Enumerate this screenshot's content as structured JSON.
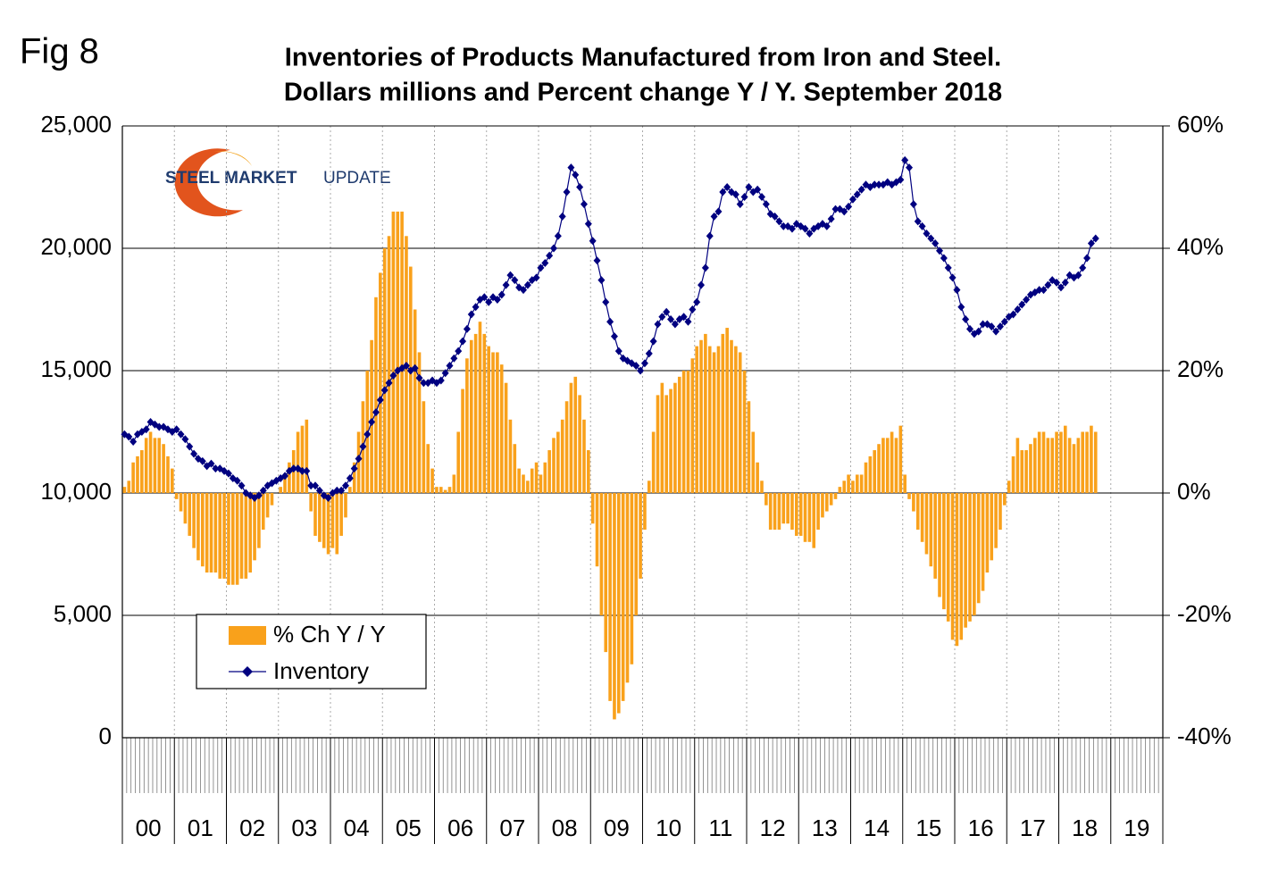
{
  "figure_label": "Fig 8",
  "logo": [
    "STEEL MARKET",
    "UPDATE"
  ],
  "chart_data": {
    "type": "bar_line",
    "title": "Inventories of Products Manufactured from Iron and Steel.",
    "subtitle": "Dollars millions and Percent change Y / Y. September 2018",
    "x_labels": [
      "00",
      "01",
      "02",
      "03",
      "04",
      "05",
      "06",
      "07",
      "08",
      "09",
      "10",
      "11",
      "12",
      "13",
      "14",
      "15",
      "16",
      "17",
      "18",
      "19"
    ],
    "ylim": [
      0,
      25000
    ],
    "yticks": [
      0,
      {
        "value": 5000,
        "label": "5,000"
      },
      {
        "value": 10000,
        "label": "10,000"
      },
      {
        "value": 15000,
        "label": "15,000"
      },
      {
        "value": 20000,
        "label": "20,000"
      },
      {
        "value": 25000,
        "label": "25,000"
      }
    ],
    "y2lim": [
      -40,
      60
    ],
    "y2ticks": [
      {
        "value": -40,
        "label": "-40%"
      },
      {
        "value": -20,
        "label": "-20%"
      },
      {
        "value": 0,
        "label": "0%"
      },
      {
        "value": 20,
        "label": "20%"
      },
      {
        "value": 40,
        "label": "40%"
      },
      {
        "value": 60,
        "label": "60%"
      }
    ],
    "grid": true,
    "series": [
      {
        "name": "% Ch Y / Y",
        "type": "bar",
        "axis": "y2",
        "color": "#f9a11b",
        "values": [
          1,
          2,
          5,
          6,
          7,
          9,
          10,
          9,
          9,
          8,
          6,
          4,
          -1,
          -3,
          -5,
          -7,
          -9,
          -11,
          -12,
          -13,
          -13,
          -13,
          -14,
          -14,
          -15,
          -15,
          -15,
          -14,
          -14,
          -13,
          -11,
          -9,
          -6,
          -4,
          -2,
          0,
          1,
          3,
          5,
          7,
          10,
          11,
          12,
          -3,
          -7,
          -8,
          -9,
          -10,
          -9,
          -10,
          -7,
          -4,
          1,
          5,
          10,
          15,
          20,
          25,
          32,
          36,
          40,
          42,
          46,
          46,
          46,
          42,
          37,
          30,
          23,
          15,
          8,
          4,
          1,
          1,
          0.5,
          1,
          3,
          10,
          17,
          22,
          25,
          26,
          28,
          26,
          24,
          23,
          23,
          21,
          18,
          12,
          8,
          4,
          3,
          2,
          4,
          5,
          3,
          5,
          7,
          9,
          10,
          12,
          15,
          18,
          19,
          16,
          12,
          7,
          -5,
          -12,
          -20,
          -26,
          -34,
          -37,
          -36,
          -34,
          -31,
          -28,
          -20,
          -14,
          -6,
          2,
          10,
          16,
          18,
          16,
          17,
          18,
          19,
          20,
          20,
          22,
          24,
          25,
          26,
          24,
          23,
          24,
          26,
          27,
          25,
          24,
          23,
          20,
          15,
          10,
          5,
          2,
          -2,
          -6,
          -6,
          -6,
          -5,
          -5,
          -6,
          -7,
          -7,
          -8,
          -8,
          -9,
          -6,
          -4,
          -3,
          -2,
          -1,
          1,
          2,
          3,
          2,
          3,
          3,
          5,
          6,
          7,
          8,
          9,
          9,
          10,
          9,
          11,
          3,
          -1,
          -3,
          -6,
          -8,
          -10,
          -12,
          -14,
          -17,
          -19,
          -21,
          -24,
          -25,
          -24,
          -22,
          -21,
          -20,
          -18,
          -16,
          -13,
          -11,
          -9,
          -6,
          -2,
          2,
          6,
          9,
          7,
          7,
          8,
          9,
          10,
          10,
          9,
          9,
          10,
          10,
          11,
          9,
          8,
          9,
          10,
          10,
          11,
          10
        ]
      },
      {
        "name": "Inventory",
        "type": "line",
        "axis": "y",
        "color": "#000080",
        "values": [
          12400,
          12300,
          12100,
          12400,
          12500,
          12600,
          12900,
          12800,
          12700,
          12700,
          12600,
          12500,
          12600,
          12400,
          12200,
          11900,
          11600,
          11400,
          11300,
          11100,
          11200,
          11000,
          11000,
          10900,
          10800,
          10600,
          10500,
          10300,
          10000,
          9900,
          9800,
          9900,
          10100,
          10300,
          10400,
          10500,
          10600,
          10700,
          10900,
          11000,
          11000,
          10900,
          10900,
          10300,
          10300,
          10100,
          9900,
          9800,
          10000,
          10100,
          10100,
          10300,
          10600,
          11000,
          11400,
          11900,
          12400,
          12900,
          13300,
          13800,
          14200,
          14500,
          14800,
          15000,
          15100,
          15200,
          15000,
          15100,
          14700,
          14500,
          14500,
          14600,
          14500,
          14600,
          14900,
          15200,
          15500,
          15800,
          16200,
          16700,
          17300,
          17600,
          17900,
          18000,
          17800,
          18000,
          17900,
          18100,
          18500,
          18900,
          18700,
          18400,
          18300,
          18500,
          18700,
          18800,
          19200,
          19400,
          19700,
          20000,
          20500,
          21300,
          22300,
          23300,
          23000,
          22500,
          21800,
          21000,
          20300,
          19500,
          18700,
          17800,
          17000,
          16400,
          15800,
          15500,
          15400,
          15300,
          15200,
          15000,
          15300,
          15700,
          16200,
          16900,
          17200,
          17400,
          17100,
          16900,
          17100,
          17200,
          17000,
          17500,
          17800,
          18500,
          19200,
          20500,
          21300,
          21500,
          22300,
          22500,
          22300,
          22200,
          21800,
          22100,
          22500,
          22300,
          22400,
          22100,
          21800,
          21400,
          21300,
          21100,
          20900,
          20900,
          20800,
          21000,
          20900,
          20800,
          20600,
          20800,
          20900,
          21000,
          20900,
          21200,
          21600,
          21600,
          21500,
          21700,
          22000,
          22200,
          22400,
          22600,
          22500,
          22600,
          22600,
          22600,
          22700,
          22600,
          22700,
          22800,
          23600,
          23300,
          21800,
          21100,
          20900,
          20600,
          20400,
          20200,
          19900,
          19600,
          19200,
          18800,
          18300,
          17600,
          17100,
          16700,
          16500,
          16600,
          16900,
          16900,
          16800,
          16600,
          16800,
          17000,
          17200,
          17300,
          17500,
          17700,
          17900,
          18100,
          18200,
          18300,
          18300,
          18500,
          18700,
          18600,
          18400,
          18600,
          18900,
          18800,
          18900,
          19200,
          19600,
          20200,
          20400
        ]
      }
    ]
  }
}
